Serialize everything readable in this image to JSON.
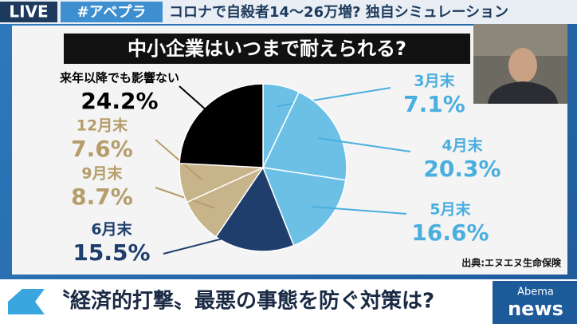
{
  "header": {
    "live": "LIVE",
    "hashtag": "#アベプラ",
    "headline": "コロナで自殺者14〜26万増? 独自シミュレーション"
  },
  "chart_data": {
    "type": "pie",
    "title": "中小企業はいつまで耐えられる?",
    "categories": [
      "3月末",
      "4月末",
      "5月末",
      "6月末",
      "9月末",
      "12月末",
      "来年以降でも影響ない"
    ],
    "values": [
      7.1,
      20.3,
      16.6,
      15.5,
      8.7,
      7.6,
      24.2
    ],
    "value_labels": [
      "7.1%",
      "20.3%",
      "16.6%",
      "15.5%",
      "8.7%",
      "7.6%",
      "24.2%"
    ],
    "colors": [
      "#6cc0e6",
      "#6cc0e6",
      "#6cc0e6",
      "#1f3e6c",
      "#c8b48a",
      "#c8b48a",
      "#000000"
    ],
    "label_colors": [
      "#4aaedf",
      "#4aaedf",
      "#4aaedf",
      "#1f3e6c",
      "#b59d6a",
      "#b59d6a",
      "#000000"
    ],
    "source": "出典:エヌエヌ生命保険"
  },
  "footer": {
    "caption": "〝経済的打撃〟最悪の事態を防ぐ対策は?",
    "brand_top": "Abema",
    "brand_bottom": "news"
  }
}
